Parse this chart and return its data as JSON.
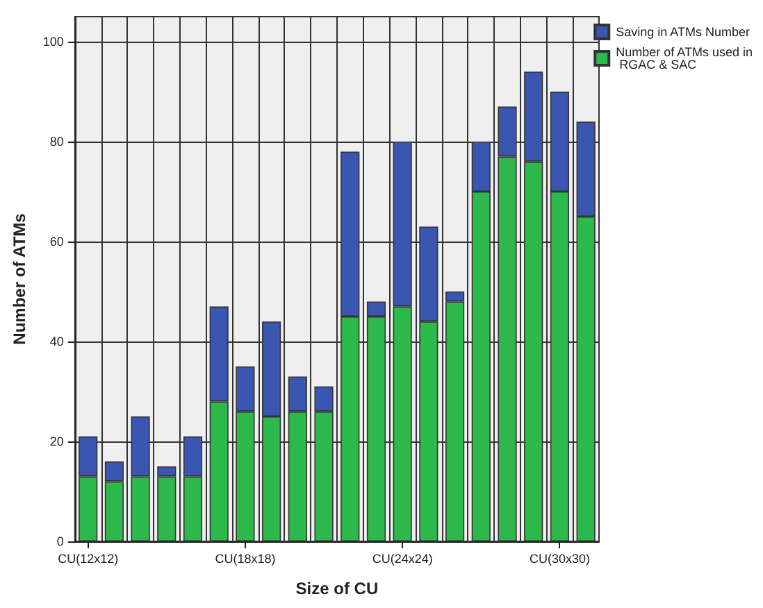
{
  "chart_data": {
    "type": "bar",
    "stacked": true,
    "xlabel": "Size of CU",
    "ylabel": "Number of ATMs",
    "categories": [
      "CU(12x12)",
      null,
      null,
      null,
      null,
      null,
      "CU(18x18)",
      null,
      null,
      null,
      null,
      null,
      "CU(24x24)",
      null,
      null,
      null,
      null,
      null,
      "CU(30x30)",
      null
    ],
    "series": [
      {
        "name": "Number of ATMs used in RGAC & SAC",
        "color": "#2db84b",
        "values": [
          13,
          12,
          13,
          13,
          13,
          28,
          26,
          25,
          26,
          26,
          45,
          45,
          47,
          44,
          48,
          70,
          77,
          76,
          70,
          65
        ]
      },
      {
        "name": "Saving in ATMs Number",
        "color": "#3a56b0",
        "values": [
          8,
          4,
          12,
          2,
          8,
          19,
          9,
          19,
          7,
          5,
          33,
          3,
          33,
          19,
          2,
          10,
          10,
          18,
          20,
          19
        ]
      }
    ],
    "ylim": [
      0,
      105
    ],
    "yticks": [
      0,
      20,
      40,
      60,
      80,
      100
    ],
    "grid": true,
    "legend": "top right"
  }
}
